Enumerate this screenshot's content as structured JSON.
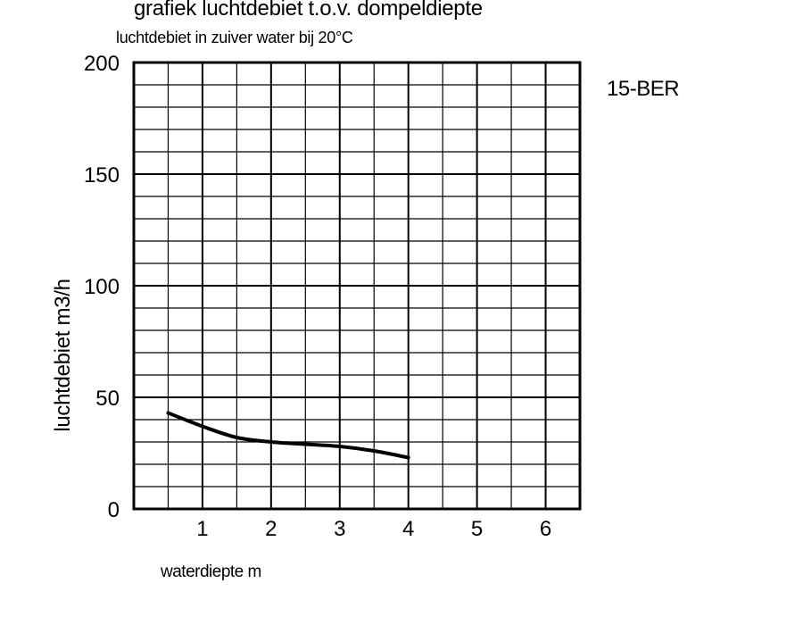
{
  "chart_data": {
    "type": "line",
    "title": "grafiek luchtdebiet t.o.v. dompeldiepte",
    "subtitle": "luchtdebiet in zuiver water bij 20°C",
    "model_label": "15-BER",
    "xlabel": "waterdiepte m",
    "ylabel": "luchtdebiet m3/h",
    "xlim": [
      0,
      6.5
    ],
    "ylim": [
      0,
      200
    ],
    "x_ticks": [
      "1",
      "2",
      "3",
      "4",
      "5",
      "6"
    ],
    "y_ticks": [
      "0",
      "50",
      "100",
      "150",
      "200"
    ],
    "grid": true,
    "series": [
      {
        "x": [
          0.5,
          1.0,
          1.5,
          2.0,
          2.5,
          3.0,
          3.5,
          4.0
        ],
        "y": [
          43,
          37,
          32,
          30,
          29,
          28,
          26,
          23
        ]
      }
    ]
  }
}
